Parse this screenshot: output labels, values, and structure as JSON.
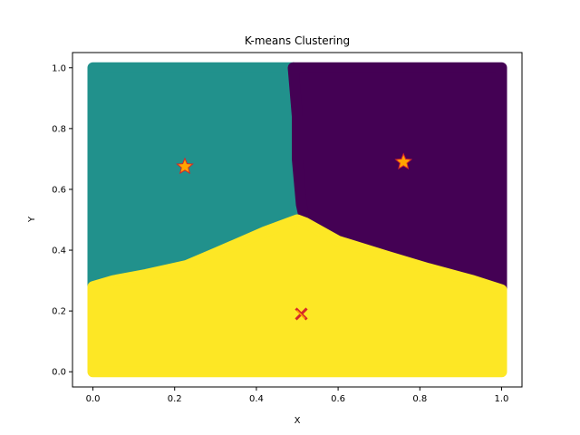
{
  "chart_data": {
    "type": "scatter",
    "title": "K-means Clustering",
    "xlabel": "X",
    "ylabel": "Y",
    "xlim": [
      -0.05,
      1.05
    ],
    "ylim": [
      -0.05,
      1.05
    ],
    "xticks": [
      "0.0",
      "0.2",
      "0.4",
      "0.6",
      "0.8",
      "1.0"
    ],
    "yticks": [
      "0.0",
      "0.2",
      "0.4",
      "0.6",
      "0.8",
      "1.0"
    ],
    "grid": false,
    "legend": "none",
    "clusters": [
      {
        "color": "#21918c",
        "region": "upper-left",
        "polygon": [
          [
            0,
            1
          ],
          [
            0.49,
            1
          ],
          [
            0.5,
            0.84
          ],
          [
            0.5,
            0.7
          ],
          [
            0.52,
            0.55
          ],
          [
            0.5,
            0.5
          ],
          [
            0.42,
            0.46
          ],
          [
            0.3,
            0.39
          ],
          [
            0.23,
            0.35
          ],
          [
            0.13,
            0.32
          ],
          [
            0.05,
            0.3
          ],
          [
            0,
            0.28
          ]
        ],
        "centroid": [
          0.225,
          0.675
        ],
        "centroid_marker": "star"
      },
      {
        "color": "#440154",
        "region": "upper-right",
        "polygon": [
          [
            0.49,
            1
          ],
          [
            1,
            1
          ],
          [
            1,
            0.27
          ],
          [
            0.93,
            0.3
          ],
          [
            0.82,
            0.34
          ],
          [
            0.72,
            0.38
          ],
          [
            0.6,
            0.43
          ],
          [
            0.52,
            0.49
          ],
          [
            0.51,
            0.55
          ],
          [
            0.5,
            0.7
          ],
          [
            0.5,
            0.84
          ]
        ],
        "centroid": [
          0.76,
          0.69
        ],
        "centroid_marker": "star"
      },
      {
        "color": "#fde725",
        "region": "bottom",
        "polygon": [
          [
            0,
            0
          ],
          [
            1,
            0
          ],
          [
            1,
            0.27
          ],
          [
            0.93,
            0.3
          ],
          [
            0.82,
            0.34
          ],
          [
            0.72,
            0.38
          ],
          [
            0.6,
            0.43
          ],
          [
            0.52,
            0.49
          ],
          [
            0.5,
            0.5
          ],
          [
            0.42,
            0.46
          ],
          [
            0.3,
            0.39
          ],
          [
            0.23,
            0.35
          ],
          [
            0.13,
            0.32
          ],
          [
            0.05,
            0.3
          ],
          [
            0,
            0.28
          ]
        ],
        "centroid": [
          0.51,
          0.19
        ],
        "centroid_marker": "x"
      }
    ],
    "centroid_fill": "#ffa500",
    "centroid_edge": "#d62728"
  }
}
